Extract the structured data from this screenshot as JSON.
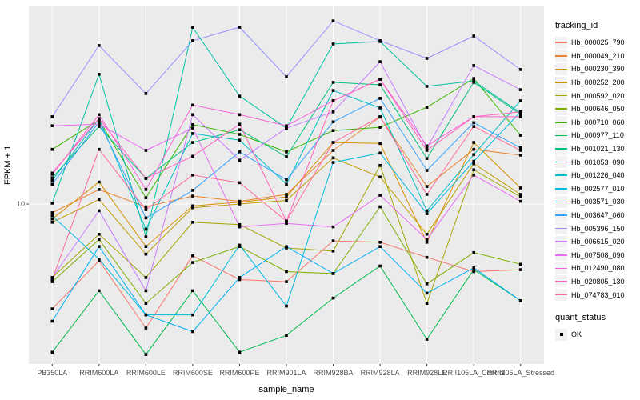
{
  "chart_data": {
    "type": "line",
    "title": "",
    "xlabel": "sample_name",
    "ylabel": "FPKM + 1",
    "y_scale": "log10",
    "ylim": [
      1.8,
      85
    ],
    "y_tick_labels": [
      "10"
    ],
    "grid": "vertical white gridlines per category, horizontal white line at 10, gray panel",
    "panel_bg": "#EBEBEB",
    "grid_color": "#FFFFFF",
    "marker": "black-square",
    "categories": [
      "PB350LA",
      "RRIM600LA",
      "RRIM600LE",
      "RRIM600SE",
      "RRIM600PE",
      "RRIM901LA",
      "RRIM928BA",
      "RRIM928LA",
      "RRIM928LE",
      "RRII105LA_Control",
      "RRII105LA_Stressed"
    ],
    "series": [
      {
        "name": "Hb_000025_790",
        "color": "#F8766D",
        "values": [
          3.2,
          5.4,
          2.6,
          5.7,
          4.4,
          4.3,
          6.7,
          6.6,
          5.6,
          4.8,
          4.9
        ]
      },
      {
        "name": "Hb_000049_210",
        "color": "#EA8331",
        "values": [
          9.1,
          11.7,
          9.7,
          10.9,
          10.3,
          11.1,
          17.9,
          25.7,
          12.1,
          18.1,
          17.0
        ]
      },
      {
        "name": "Hb_000230_390",
        "color": "#D89000",
        "values": [
          8.5,
          12.7,
          6.3,
          9.8,
          10.2,
          10.8,
          19.5,
          19.3,
          6.6,
          19.5,
          11.9
        ]
      },
      {
        "name": "Hb_000252_200",
        "color": "#C09B00",
        "values": [
          8.2,
          10.5,
          5.8,
          9.6,
          10.0,
          10.4,
          16.5,
          13.4,
          7.2,
          15.5,
          11.1
        ]
      },
      {
        "name": "Hb_000592_020",
        "color": "#A3A500",
        "values": [
          4.5,
          7.2,
          4.5,
          8.2,
          8.0,
          6.2,
          6.0,
          15.2,
          3.4,
          14.5,
          10.8
        ]
      },
      {
        "name": "Hb_000646_050",
        "color": "#7CAE00",
        "values": [
          4.3,
          6.8,
          3.4,
          5.3,
          6.3,
          4.8,
          4.7,
          9.7,
          4.2,
          5.9,
          5.2
        ]
      },
      {
        "name": "Hb_000710_060",
        "color": "#39B600",
        "values": [
          18.1,
          24.9,
          10.7,
          23.7,
          21.3,
          17.6,
          22.2,
          23.0,
          28.6,
          39.1,
          21.1
        ]
      },
      {
        "name": "Hb_000977_110",
        "color": "#00BB4E",
        "values": [
          2.0,
          3.9,
          1.95,
          3.9,
          2.0,
          2.4,
          3.6,
          5.1,
          2.3,
          4.9,
          3.5
        ]
      },
      {
        "name": "Hb_001021_130",
        "color": "#00BF7D",
        "values": [
          13.3,
          23.2,
          13.2,
          19.5,
          22.4,
          16.7,
          37.5,
          36.5,
          16.4,
          37.5,
          26.5
        ]
      },
      {
        "name": "Hb_001053_090",
        "color": "#00C1A3",
        "values": [
          10.1,
          40.9,
          7.0,
          68.1,
          32.3,
          22.8,
          56.9,
          58.4,
          35.9,
          38.1,
          26.9
        ]
      },
      {
        "name": "Hb_001226_040",
        "color": "#00BFC4",
        "values": [
          12.9,
          25.3,
          7.6,
          21.5,
          20.0,
          12.4,
          34.3,
          28.4,
          9.3,
          17.1,
          30.7
        ]
      },
      {
        "name": "Hb_002577_010",
        "color": "#00BAE0",
        "values": [
          8.8,
          5.5,
          3.0,
          3.0,
          6.4,
          3.3,
          15.7,
          17.4,
          9.0,
          15.9,
          27.2
        ]
      },
      {
        "name": "Hb_003571_030",
        "color": "#00B0F6",
        "values": [
          2.8,
          6.3,
          3.0,
          2.5,
          4.5,
          6.3,
          4.7,
          6.3,
          3.8,
          5.0,
          3.5
        ]
      },
      {
        "name": "Hb_003647_060",
        "color": "#35A2FF",
        "values": [
          12.4,
          24.4,
          8.6,
          11.6,
          17.6,
          13.0,
          24.4,
          31.5,
          14.4,
          24.2,
          18.4
        ]
      },
      {
        "name": "Hb_005396_150",
        "color": "#9590FF",
        "values": [
          25.8,
          55.9,
          33.2,
          58.9,
          68.2,
          39.8,
          73.1,
          58.9,
          48.6,
          62.0,
          43.1
        ]
      },
      {
        "name": "Hb_006615_020",
        "color": "#C77CFF",
        "values": [
          4.5,
          9.3,
          3.9,
          26.4,
          16.1,
          22.8,
          27.2,
          46.9,
          18.4,
          45.0,
          34.6
        ]
      },
      {
        "name": "Hb_007508_090",
        "color": "#E76BF3",
        "values": [
          23.4,
          23.8,
          17.9,
          22.8,
          7.8,
          8.1,
          7.8,
          11.0,
          6.8,
          13.7,
          10.3
        ]
      },
      {
        "name": "Hb_012490_080",
        "color": "#FA62DB",
        "values": [
          13.8,
          26.4,
          11.7,
          29.3,
          26.4,
          23.4,
          30.7,
          38.8,
          18.8,
          25.8,
          25.8
        ]
      },
      {
        "name": "Hb_020805_130",
        "color": "#FF62BC",
        "values": [
          14.0,
          25.3,
          13.2,
          16.8,
          23.8,
          8.3,
          30.7,
          38.8,
          17.9,
          25.8,
          27.2
        ]
      },
      {
        "name": "Hb_074783_010",
        "color": "#FF6A98",
        "values": [
          4.4,
          18.1,
          9.4,
          13.7,
          12.6,
          8.3,
          19.5,
          25.8,
          11.1,
          23.2,
          17.9
        ]
      }
    ],
    "legend": {
      "series_title": "tracking_id",
      "quant_title": "quant_status",
      "quant_items": [
        {
          "label": "OK"
        }
      ],
      "position": "right"
    }
  }
}
